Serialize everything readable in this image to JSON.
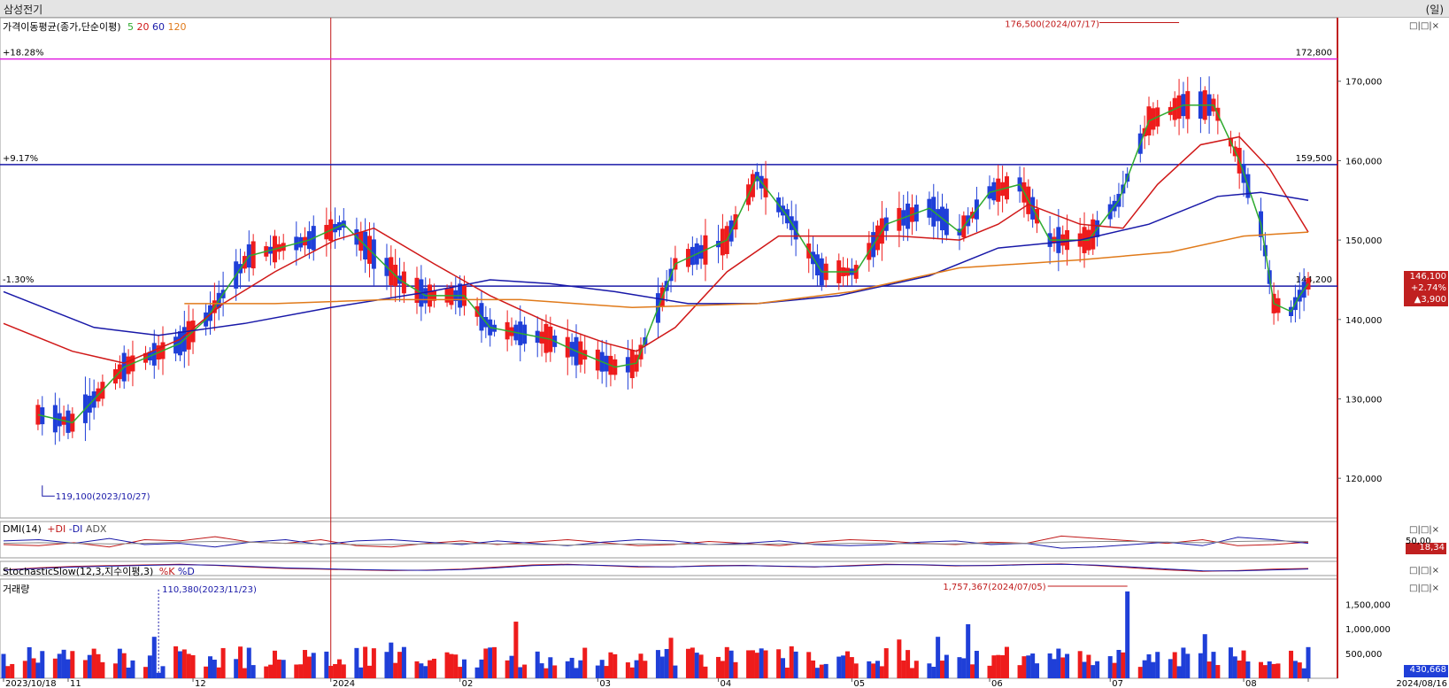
{
  "window": {
    "title": "삼성전기",
    "unit": "(일)"
  },
  "panels": {
    "price": {
      "label": "가격이동평균(종가,단순이평)",
      "ma_labels": [
        "5",
        "20",
        "60",
        "120"
      ]
    },
    "dmi": {
      "label": "DMI(14)",
      "series_labels": [
        "+DI",
        "-DI",
        "ADX"
      ],
      "axis_tick": "50,00",
      "value_badge": "18,34"
    },
    "stoch": {
      "label": "StochasticSlow(12,3,지수이평,3)",
      "series_labels": [
        "%K",
        "%D"
      ]
    },
    "volume": {
      "label": "거래량",
      "value_badge": "430,668"
    }
  },
  "header_controls": "□|□|×",
  "colors": {
    "up": "#ee1c1c",
    "down": "#1f3fd8",
    "ma5": "#2eaa2e",
    "ma20": "#d01818",
    "ma60": "#1818a8",
    "ma120": "#e07a1a",
    "resistance": "#e020e0",
    "hline": "#1a1aa8",
    "vline": "#c01818",
    "axis_bar": "#c02020",
    "dmi_plus": "#c01818",
    "dmi_minus": "#1818a8",
    "adx": "#888888",
    "stoch_k": "#c01818",
    "stoch_d": "#1818a8"
  },
  "chart_data": [
    {
      "type": "candlestick",
      "title": "삼성전기",
      "period": "daily",
      "x_range": [
        "2023/10/18",
        "2024/08/16"
      ],
      "x_tick_labels": [
        "2023/10/18",
        "11",
        "12",
        "2024",
        "02",
        "03",
        "04",
        "05",
        "06",
        "07",
        "08",
        "2024/08/16"
      ],
      "ylim": [
        115000,
        178000
      ],
      "y_ticks": [
        120000,
        130000,
        140000,
        150000,
        160000,
        170000
      ],
      "y_tick_labels": [
        "120,000",
        "130,000",
        "140,000",
        "150,000",
        "160,000",
        "170,000"
      ],
      "grid": false,
      "reference_lines": [
        {
          "label": "+18.28%",
          "value": 172800,
          "value_label": "172,800",
          "color": "magenta"
        },
        {
          "label": "+9.17%",
          "value": 159500,
          "value_label": "159,500",
          "color": "navy"
        },
        {
          "label": "-1.30%",
          "value": 144200,
          "value_label": "144,200",
          "color": "navy"
        }
      ],
      "marked_date": "2024/01/02",
      "annotations": [
        {
          "text": "176,500(2024/07/17)",
          "date": "2024/07/17",
          "value": 176500,
          "kind": "high"
        },
        {
          "text": "119,100(2023/10/27)",
          "date": "2023/10/27",
          "value": 119100,
          "kind": "low"
        }
      ],
      "last_close": {
        "price": "146,100",
        "change_pct": "+2.74%",
        "change": "▲3,900"
      },
      "series": [
        {
          "name": "5",
          "kind": "moving_average",
          "period": 5,
          "points": [
            [
              "2023/10/26",
              128000
            ],
            [
              "2023/11/03",
              127000
            ],
            [
              "2023/11/15",
              134000
            ],
            [
              "2023/11/28",
              137000
            ],
            [
              "2023/12/04",
              140000
            ],
            [
              "2023/12/14",
              148000
            ],
            [
              "2023/12/28",
              150000
            ],
            [
              "2024/01/05",
              152000
            ],
            [
              "2024/01/18",
              145000
            ],
            [
              "2024/01/24",
              143000
            ],
            [
              "2024/02/02",
              143000
            ],
            [
              "2024/02/08",
              139000
            ],
            [
              "2024/02/22",
              137500
            ],
            [
              "2024/02/28",
              136000
            ],
            [
              "2024/03/08",
              134000
            ],
            [
              "2024/03/13",
              134500
            ],
            [
              "2024/03/22",
              147000
            ],
            [
              "2024/04/03",
              150000
            ],
            [
              "2024/04/10",
              158000
            ],
            [
              "2024/04/17",
              153000
            ],
            [
              "2024/04/25",
              146000
            ],
            [
              "2024/05/03",
              146000
            ],
            [
              "2024/05/10",
              152000
            ],
            [
              "2024/05/20",
              154000
            ],
            [
              "2024/05/27",
              151000
            ],
            [
              "2024/06/03",
              156000
            ],
            [
              "2024/06/10",
              157000
            ],
            [
              "2024/06/17",
              150000
            ],
            [
              "2024/06/26",
              150000
            ],
            [
              "2024/07/03",
              155000
            ],
            [
              "2024/07/10",
              165000
            ],
            [
              "2024/07/18",
              167000
            ],
            [
              "2024/07/25",
              167000
            ],
            [
              "2024/07/31",
              160000
            ],
            [
              "2024/08/05",
              152000
            ],
            [
              "2024/08/08",
              142000
            ],
            [
              "2024/08/12",
              141000
            ],
            [
              "2024/08/14",
              143000
            ],
            [
              "2024/08/16",
              144500
            ]
          ]
        },
        {
          "name": "20",
          "kind": "moving_average",
          "period": 20,
          "points": [
            [
              "2023/10/18",
              139500
            ],
            [
              "2023/11/03",
              136000
            ],
            [
              "2023/11/15",
              134500
            ],
            [
              "2023/11/28",
              137500
            ],
            [
              "2023/12/08",
              142000
            ],
            [
              "2023/12/20",
              146000
            ],
            [
              "2024/01/03",
              150000
            ],
            [
              "2024/01/12",
              151500
            ],
            [
              "2024/01/26",
              147000
            ],
            [
              "2024/02/08",
              143000
            ],
            [
              "2024/02/22",
              139500
            ],
            [
              "2024/03/06",
              137000
            ],
            [
              "2024/03/13",
              136000
            ],
            [
              "2024/03/22",
              139000
            ],
            [
              "2024/04/03",
              146000
            ],
            [
              "2024/04/15",
              150500
            ],
            [
              "2024/04/29",
              150500
            ],
            [
              "2024/05/13",
              150500
            ],
            [
              "2024/05/27",
              150000
            ],
            [
              "2024/06/05",
              152000
            ],
            [
              "2024/06/12",
              154500
            ],
            [
              "2024/06/24",
              152000
            ],
            [
              "2024/07/04",
              151500
            ],
            [
              "2024/07/12",
              157000
            ],
            [
              "2024/07/22",
              162000
            ],
            [
              "2024/07/31",
              163000
            ],
            [
              "2024/08/07",
              159000
            ],
            [
              "2024/08/16",
              151000
            ]
          ]
        },
        {
          "name": "60",
          "kind": "moving_average",
          "period": 60,
          "points": [
            [
              "2023/10/18",
              143500
            ],
            [
              "2023/11/08",
              139000
            ],
            [
              "2023/11/23",
              138000
            ],
            [
              "2023/12/13",
              139500
            ],
            [
              "2024/01/02",
              141500
            ],
            [
              "2024/01/25",
              143500
            ],
            [
              "2024/02/08",
              145000
            ],
            [
              "2024/02/22",
              144500
            ],
            [
              "2024/03/08",
              143500
            ],
            [
              "2024/03/25",
              142000
            ],
            [
              "2024/04/10",
              142000
            ],
            [
              "2024/04/29",
              143000
            ],
            [
              "2024/05/20",
              145500
            ],
            [
              "2024/06/05",
              149000
            ],
            [
              "2024/06/24",
              150000
            ],
            [
              "2024/07/10",
              152000
            ],
            [
              "2024/07/26",
              155500
            ],
            [
              "2024/08/05",
              156000
            ],
            [
              "2024/08/16",
              155000
            ]
          ]
        },
        {
          "name": "120",
          "kind": "moving_average",
          "period": 120,
          "points": [
            [
              "2023/11/29",
              142000
            ],
            [
              "2023/12/20",
              142000
            ],
            [
              "2024/01/15",
              142500
            ],
            [
              "2024/02/15",
              142500
            ],
            [
              "2024/03/12",
              141500
            ],
            [
              "2024/04/10",
              142000
            ],
            [
              "2024/05/02",
              143500
            ],
            [
              "2024/05/27",
              146500
            ],
            [
              "2024/06/24",
              147500
            ],
            [
              "2024/07/15",
              148500
            ],
            [
              "2024/08/01",
              150500
            ],
            [
              "2024/08/16",
              151000
            ]
          ]
        }
      ]
    },
    {
      "type": "line",
      "title": "DMI(14)",
      "series": [
        {
          "name": "+DI",
          "values": [
            22,
            20,
            25,
            18,
            30,
            28,
            35,
            26,
            24,
            30,
            20,
            18,
            24,
            28,
            22,
            26,
            30,
            25,
            20,
            22,
            27,
            24,
            20,
            26,
            30,
            28,
            24,
            22,
            26,
            24,
            36,
            32,
            28,
            24,
            30,
            20,
            22,
            26
          ]
        },
        {
          "name": "-DI",
          "values": [
            28,
            30,
            24,
            32,
            22,
            24,
            18,
            26,
            30,
            22,
            28,
            30,
            26,
            22,
            28,
            24,
            20,
            26,
            30,
            28,
            22,
            24,
            28,
            22,
            20,
            22,
            26,
            28,
            22,
            24,
            16,
            18,
            22,
            26,
            20,
            34,
            30,
            24
          ]
        },
        {
          "name": "ADX",
          "values": [
            24,
            25,
            24,
            23,
            24,
            26,
            27,
            26,
            24,
            23,
            22,
            22,
            23,
            24,
            23,
            22,
            21,
            22,
            23,
            23,
            22,
            22,
            23,
            23,
            24,
            24,
            23,
            23,
            24,
            24,
            26,
            27,
            27,
            26,
            25,
            27,
            28,
            27
          ]
        }
      ]
    },
    {
      "type": "line",
      "title": "StochasticSlow(12,3,지수이평,3)",
      "series": [
        {
          "name": "%K",
          "values": [
            40,
            55,
            65,
            70,
            75,
            80,
            72,
            60,
            50,
            45,
            40,
            35,
            38,
            45,
            60,
            75,
            80,
            70,
            60,
            62,
            70,
            72,
            65,
            60,
            70,
            80,
            75,
            68,
            72,
            78,
            82,
            70,
            55,
            40,
            30,
            35,
            45,
            50
          ]
        },
        {
          "name": "%D",
          "values": [
            38,
            50,
            60,
            66,
            72,
            76,
            74,
            64,
            54,
            48,
            42,
            38,
            37,
            42,
            55,
            70,
            76,
            72,
            64,
            61,
            67,
            70,
            66,
            62,
            67,
            76,
            76,
            70,
            70,
            76,
            80,
            74,
            60,
            46,
            34,
            33,
            40,
            46
          ]
        }
      ]
    },
    {
      "type": "bar",
      "title": "거래량",
      "ylim": [
        0,
        1900000
      ],
      "y_ticks": [
        500000,
        1000000,
        1500000
      ],
      "y_tick_labels": [
        "500,000",
        "1,000,000",
        "1,500,000"
      ],
      "annotations": [
        {
          "text": "1,757,367(2024/07/05)",
          "date": "2024/07/05",
          "value": 1757367,
          "kind": "max"
        },
        {
          "text": "110,380(2023/11/23)",
          "date": "2023/11/23",
          "value": 110380,
          "kind": "min"
        }
      ],
      "last_value": "430,668"
    }
  ]
}
